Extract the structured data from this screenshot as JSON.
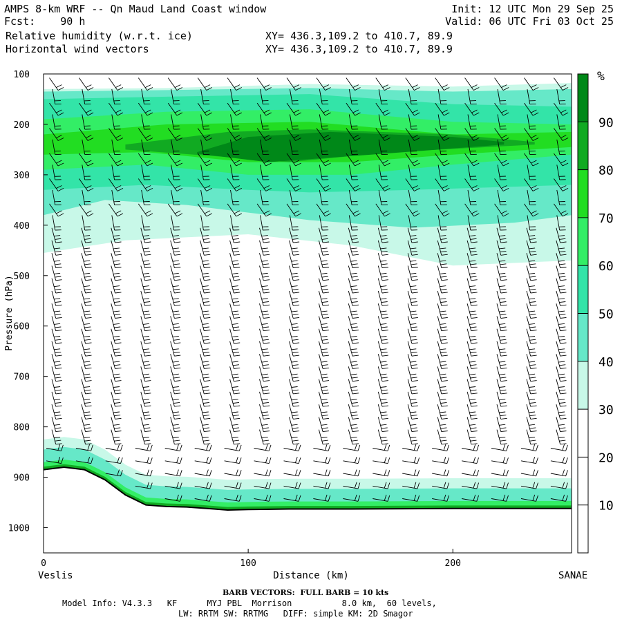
{
  "header": {
    "title": "AMPS 8-km WRF -- Qn Maud Land Coast window",
    "fcst_label": "Fcst:",
    "fcst_value": "90 h",
    "field1": "Relative humidity (w.r.t. ice)",
    "field2": "Horizontal wind vectors",
    "xy1": "XY= 436.3,109.2 to 410.7, 89.9",
    "xy2": "XY= 436.3,109.2 to 410.7, 89.9",
    "init": "Init: 12 UTC Mon 29 Sep 25",
    "valid": "Valid: 06 UTC Fri 03 Oct 25"
  },
  "footer": {
    "barb_note": "BARB VECTORS:  FULL BARB = 10 kts",
    "model_info": "Model Info: V4.3.3   KF      MYJ PBL  Morrison          8.0 km,  60 levels,",
    "model_info2": "LW: RRTM SW: RRTMG   DIFF: simple KM: 2D Smagor"
  },
  "chart_data": {
    "type": "heatmap",
    "title": "",
    "xlabel": "Distance (km)",
    "ylabel": "Pressure (hPa)",
    "xlim": [
      0,
      258
    ],
    "ylim": [
      1050,
      100
    ],
    "x_ticks": [
      0,
      100,
      200
    ],
    "y_ticks": [
      100,
      200,
      300,
      400,
      500,
      600,
      700,
      800,
      900,
      1000
    ],
    "x_end_labels": {
      "left": "Veslis",
      "right": "SANAE"
    },
    "colorbar": {
      "unit": "%",
      "levels": [
        10,
        20,
        30,
        40,
        50,
        60,
        70,
        80,
        90
      ],
      "colors": [
        "#ffffff",
        "#ffffff",
        "#ffffff",
        "#c8f8e8",
        "#66e8c8",
        "#33e4a8",
        "#33ee66",
        "#22dd22",
        "#11aa22",
        "#008818"
      ]
    },
    "rh_layers": [
      {
        "min_rh": 30,
        "color": "#c8f8e8",
        "top": [
          [
            0,
            130
          ],
          [
            60,
            128
          ],
          [
            130,
            120
          ],
          [
            200,
            125
          ],
          [
            258,
            118
          ]
        ],
        "bottom": [
          [
            0,
            455
          ],
          [
            40,
            430
          ],
          [
            100,
            418
          ],
          [
            150,
            440
          ],
          [
            200,
            480
          ],
          [
            258,
            470
          ]
        ]
      },
      {
        "min_rh": 40,
        "color": "#66e8c8",
        "top": [
          [
            0,
            135
          ],
          [
            60,
            132
          ],
          [
            130,
            128
          ],
          [
            200,
            135
          ],
          [
            258,
            130
          ]
        ],
        "bottom": [
          [
            0,
            380
          ],
          [
            30,
            350
          ],
          [
            70,
            360
          ],
          [
            100,
            375
          ],
          [
            130,
            390
          ],
          [
            180,
            405
          ],
          [
            230,
            395
          ],
          [
            258,
            380
          ]
        ]
      },
      {
        "min_rh": 50,
        "color": "#33e4a8",
        "top": [
          [
            0,
            150
          ],
          [
            60,
            145
          ],
          [
            130,
            140
          ],
          [
            200,
            160
          ],
          [
            258,
            165
          ]
        ],
        "bottom": [
          [
            0,
            330
          ],
          [
            50,
            320
          ],
          [
            100,
            330
          ],
          [
            130,
            335
          ],
          [
            180,
            330
          ],
          [
            258,
            320
          ]
        ]
      },
      {
        "min_rh": 60,
        "color": "#33ee66",
        "top": [
          [
            0,
            190
          ],
          [
            60,
            175
          ],
          [
            130,
            170
          ],
          [
            200,
            195
          ],
          [
            258,
            200
          ]
        ],
        "bottom": [
          [
            0,
            290
          ],
          [
            50,
            280
          ],
          [
            100,
            300
          ],
          [
            150,
            300
          ],
          [
            200,
            280
          ],
          [
            258,
            260
          ]
        ]
      },
      {
        "min_rh": 70,
        "color": "#22dd22",
        "top": [
          [
            0,
            220
          ],
          [
            60,
            200
          ],
          [
            130,
            195
          ],
          [
            200,
            220
          ],
          [
            258,
            215
          ]
        ],
        "bottom": [
          [
            0,
            260
          ],
          [
            50,
            255
          ],
          [
            100,
            275
          ],
          [
            150,
            275
          ],
          [
            200,
            260
          ],
          [
            258,
            245
          ]
        ]
      },
      {
        "min_rh": 80,
        "color": "#11aa22",
        "top": [
          [
            40,
            240
          ],
          [
            90,
            215
          ],
          [
            130,
            210
          ],
          [
            200,
            220
          ],
          [
            240,
            235
          ]
        ],
        "bottom": [
          [
            40,
            250
          ],
          [
            90,
            265
          ],
          [
            120,
            275
          ],
          [
            170,
            255
          ],
          [
            240,
            240
          ]
        ]
      },
      {
        "min_rh": 90,
        "color": "#008818",
        "top": [
          [
            75,
            255
          ],
          [
            100,
            225
          ],
          [
            140,
            215
          ],
          [
            200,
            225
          ],
          [
            225,
            235
          ]
        ],
        "bottom": [
          [
            75,
            258
          ],
          [
            110,
            275
          ],
          [
            160,
            260
          ],
          [
            225,
            240
          ]
        ]
      }
    ],
    "surface_line": [
      [
        0,
        885
      ],
      [
        10,
        880
      ],
      [
        20,
        885
      ],
      [
        30,
        905
      ],
      [
        40,
        935
      ],
      [
        50,
        955
      ],
      [
        60,
        958
      ],
      [
        70,
        959
      ],
      [
        80,
        962
      ],
      [
        90,
        965
      ],
      [
        100,
        964
      ],
      [
        120,
        963
      ],
      [
        150,
        963
      ],
      [
        200,
        962
      ],
      [
        258,
        962
      ]
    ]
  }
}
